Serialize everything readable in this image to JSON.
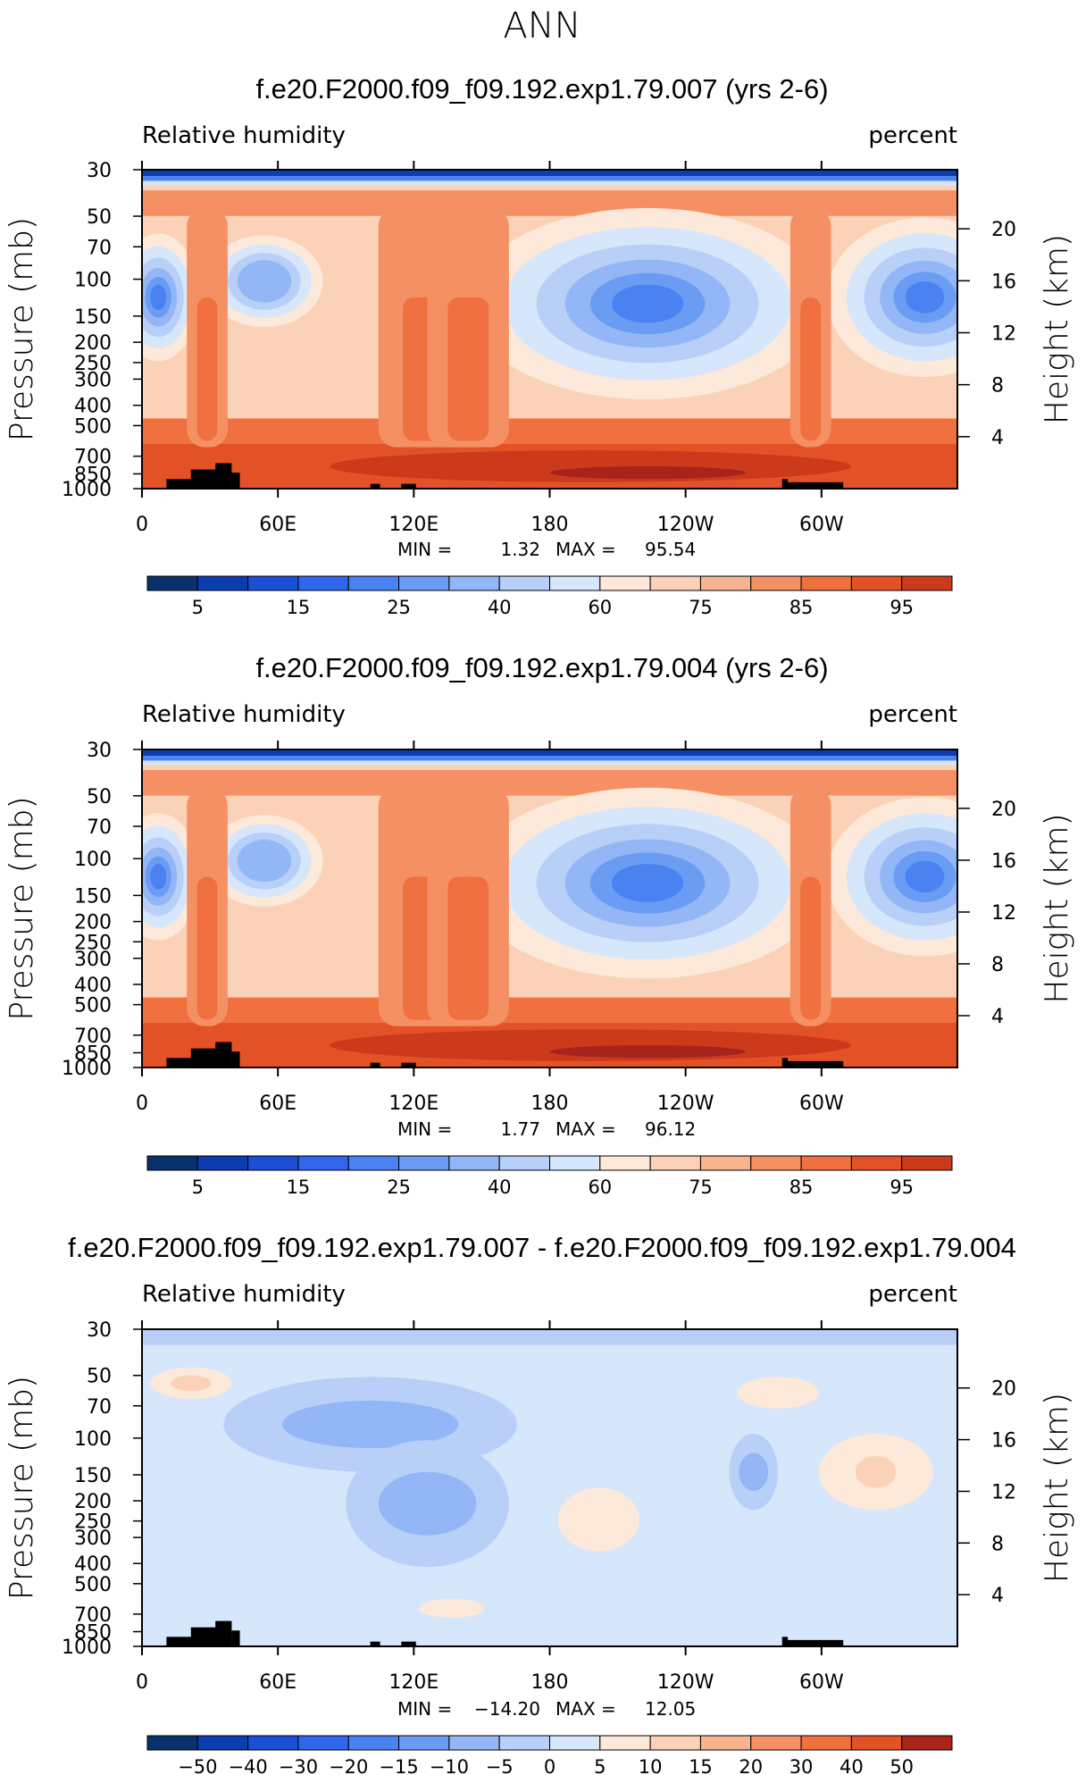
{
  "main_title": "ANN",
  "colors": {
    "map_blues": [
      "#08306b",
      "#0b3db0",
      "#1a4fd6",
      "#2f66ec",
      "#4a82f2",
      "#6b9cf4",
      "#93b7f6",
      "#b8d0f8",
      "#d6e6fb"
    ],
    "map_reds": [
      "#fde9d9",
      "#fbd2b7",
      "#f8b48f",
      "#f59065",
      "#f0703f",
      "#e35227",
      "#cc3a1c",
      "#a8241a",
      "#7a0d0d"
    ],
    "land": "#000000",
    "grid": "#000000"
  },
  "chart_data": [
    {
      "type": "contour",
      "panel_title": "f.e20.F2000.f09_f09.192.exp1.79.007 (yrs 2-6)",
      "left_label": "Relative humidity",
      "right_label": "percent",
      "ylabel": "Pressure (mb)",
      "ylabel_right": "Height (km)",
      "x_ticks": [
        "0",
        "60E",
        "120E",
        "180",
        "120W",
        "60W"
      ],
      "y_ticks": [
        "30",
        "50",
        "70",
        "100",
        "150",
        "200",
        "250",
        "300",
        "400",
        "500",
        "700",
        "850",
        "1000"
      ],
      "height_ticks": [
        "20",
        "16",
        "12",
        "8",
        "4"
      ],
      "min_label": "MIN =",
      "min_value": "1.32",
      "max_label": "MAX =",
      "max_value": "95.54",
      "colorbar_labels": [
        "5",
        "15",
        "25",
        "40",
        "60",
        "75",
        "85",
        "95"
      ],
      "field": "absolute"
    },
    {
      "type": "contour",
      "panel_title": "f.e20.F2000.f09_f09.192.exp1.79.004 (yrs 2-6)",
      "left_label": "Relative humidity",
      "right_label": "percent",
      "ylabel": "Pressure (mb)",
      "ylabel_right": "Height (km)",
      "x_ticks": [
        "0",
        "60E",
        "120E",
        "180",
        "120W",
        "60W"
      ],
      "y_ticks": [
        "30",
        "50",
        "70",
        "100",
        "150",
        "200",
        "250",
        "300",
        "400",
        "500",
        "700",
        "850",
        "1000"
      ],
      "height_ticks": [
        "20",
        "16",
        "12",
        "8",
        "4"
      ],
      "min_label": "MIN =",
      "min_value": "1.77",
      "max_label": "MAX =",
      "max_value": "96.12",
      "colorbar_labels": [
        "5",
        "15",
        "25",
        "40",
        "60",
        "75",
        "85",
        "95"
      ],
      "field": "absolute"
    },
    {
      "type": "contour",
      "panel_title": "f.e20.F2000.f09_f09.192.exp1.79.007 - f.e20.F2000.f09_f09.192.exp1.79.004",
      "left_label": "Relative humidity",
      "right_label": "percent",
      "ylabel": "Pressure (mb)",
      "ylabel_right": "Height (km)",
      "x_ticks": [
        "0",
        "60E",
        "120E",
        "180",
        "120W",
        "60W"
      ],
      "y_ticks": [
        "30",
        "50",
        "70",
        "100",
        "150",
        "200",
        "250",
        "300",
        "400",
        "500",
        "700",
        "850",
        "1000"
      ],
      "height_ticks": [
        "20",
        "16",
        "12",
        "8",
        "4"
      ],
      "min_label": "MIN =",
      "min_value": "−14.20",
      "max_label": "MAX =",
      "max_value": "12.05",
      "colorbar_labels": [
        "−50",
        "−40",
        "−30",
        "−20",
        "−15",
        "−10",
        "−5",
        "0",
        "5",
        "10",
        "15",
        "20",
        "30",
        "40",
        "50"
      ],
      "field": "difference"
    }
  ]
}
